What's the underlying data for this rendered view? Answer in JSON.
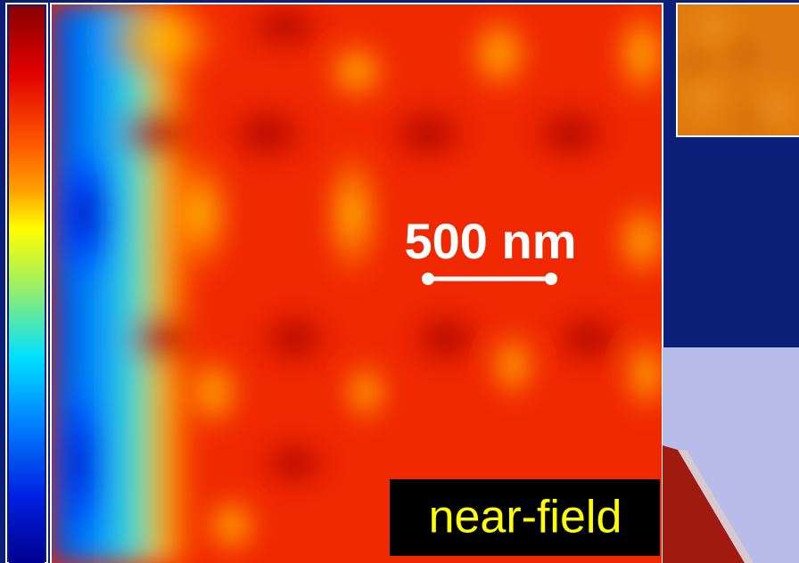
{
  "image": {
    "scale_label": "500 nm",
    "mode_label": "near-field"
  }
}
